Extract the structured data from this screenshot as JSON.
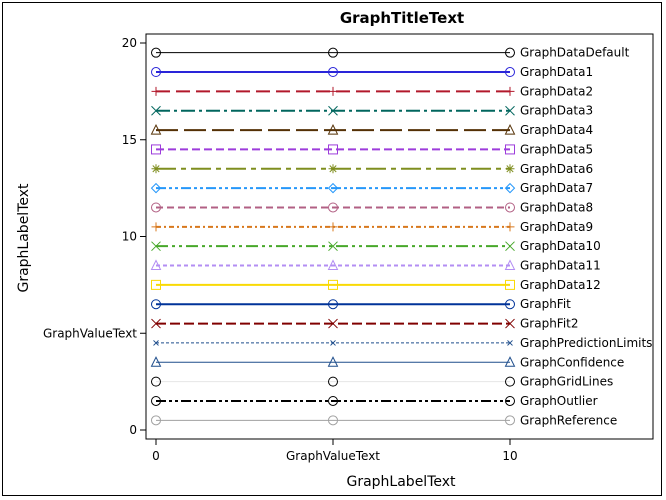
{
  "chart_data": {
    "type": "line",
    "title": "GraphTitleText",
    "xlabel": "GraphLabelText",
    "ylabel": "GraphLabelText",
    "xlim": [
      0,
      10
    ],
    "ylim": [
      0,
      20
    ],
    "x_ticks": [
      {
        "value": 0,
        "label": "0"
      },
      {
        "value": 5,
        "label": "GraphValueText"
      },
      {
        "value": 10,
        "label": "10"
      }
    ],
    "y_ticks": [
      {
        "value": 0,
        "label": "0"
      },
      {
        "value": 5,
        "label": "GraphValueText"
      },
      {
        "value": 10,
        "label": "10"
      },
      {
        "value": 15,
        "label": "15"
      },
      {
        "value": 20,
        "label": "20"
      }
    ],
    "grid": false,
    "legend": "inline-right",
    "x": [
      0,
      5,
      10
    ],
    "series": [
      {
        "name": "GraphDataDefault",
        "y": 19.5,
        "color": "#000000",
        "dash": "",
        "width": 1,
        "marker": "circle"
      },
      {
        "name": "GraphData1",
        "y": 18.5,
        "color": "#2A25D9",
        "dash": "",
        "width": 2,
        "marker": "circle"
      },
      {
        "name": "GraphData2",
        "y": 17.5,
        "color": "#B2182B",
        "dash": "14 6",
        "width": 2,
        "marker": "plus"
      },
      {
        "name": "GraphData3",
        "y": 16.5,
        "color": "#01665E",
        "dash": "14 4 3 4",
        "width": 2,
        "marker": "x"
      },
      {
        "name": "GraphData4",
        "y": 15.5,
        "color": "#543005",
        "dash": "22 6",
        "width": 2,
        "marker": "triangle"
      },
      {
        "name": "GraphData5",
        "y": 14.5,
        "color": "#9D3CDB",
        "dash": "8 4",
        "width": 2,
        "marker": "square"
      },
      {
        "name": "GraphData6",
        "y": 13.5,
        "color": "#7F8E1F",
        "dash": "20 5 5 5",
        "width": 2,
        "marker": "star"
      },
      {
        "name": "GraphData7",
        "y": 12.5,
        "color": "#2597FA",
        "dash": "10 3 3 3 3 3",
        "width": 2,
        "marker": "diamond"
      },
      {
        "name": "GraphData8",
        "y": 11.5,
        "color": "#B26084",
        "dash": "7 4",
        "width": 2,
        "marker": "circle"
      },
      {
        "name": "GraphData9",
        "y": 10.5,
        "color": "#D8781C",
        "dash": "5 3 2 3",
        "width": 2,
        "marker": "plus"
      },
      {
        "name": "GraphData10",
        "y": 9.5,
        "color": "#47A82A",
        "dash": "12 4 3 4 3 4",
        "width": 2,
        "marker": "x"
      },
      {
        "name": "GraphData11",
        "y": 8.5,
        "color": "#B38EF3",
        "dash": "4 3",
        "width": 2,
        "marker": "triangle"
      },
      {
        "name": "GraphData12",
        "y": 7.5,
        "color": "#F9DA04",
        "dash": "",
        "width": 2,
        "marker": "square"
      },
      {
        "name": "GraphFit",
        "y": 6.5,
        "color": "#003399",
        "dash": "",
        "width": 2,
        "marker": "circle"
      },
      {
        "name": "GraphFit2",
        "y": 5.5,
        "color": "#800000",
        "dash": "10 4",
        "width": 2,
        "marker": "x"
      },
      {
        "name": "GraphPredictionLimits",
        "y": 4.5,
        "color": "#1F4E8C",
        "dash": "3 2",
        "width": 1,
        "marker": "x-small"
      },
      {
        "name": "GraphConfidence",
        "y": 3.5,
        "color": "#1F4E8C",
        "dash": "",
        "width": 1,
        "marker": "triangle"
      },
      {
        "name": "GraphGridLines",
        "y": 2.5,
        "color": "#E6E6E6",
        "dash": "",
        "width": 1,
        "marker": "circle-black"
      },
      {
        "name": "GraphOutlier",
        "y": 1.5,
        "color": "#000000",
        "dash": "10 3 3 3 3 3",
        "width": 2,
        "marker": "circle"
      },
      {
        "name": "GraphReference",
        "y": 0.5,
        "color": "#A0A0A0",
        "dash": "",
        "width": 1,
        "marker": "circle"
      }
    ]
  }
}
